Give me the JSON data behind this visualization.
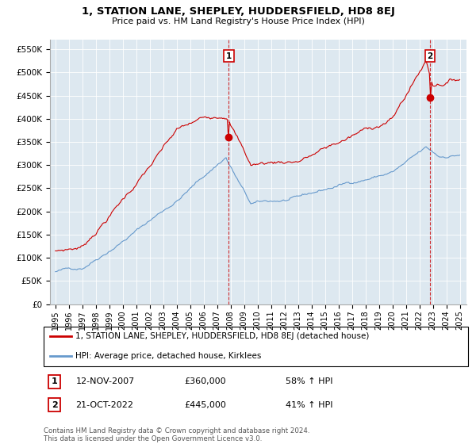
{
  "title": "1, STATION LANE, SHEPLEY, HUDDERSFIELD, HD8 8EJ",
  "subtitle": "Price paid vs. HM Land Registry's House Price Index (HPI)",
  "legend_line1": "1, STATION LANE, SHEPLEY, HUDDERSFIELD, HD8 8EJ (detached house)",
  "legend_line2": "HPI: Average price, detached house, Kirklees",
  "annotation1_date": "12-NOV-2007",
  "annotation1_price": "£360,000",
  "annotation1_hpi": "58% ↑ HPI",
  "annotation2_date": "21-OCT-2022",
  "annotation2_price": "£445,000",
  "annotation2_hpi": "41% ↑ HPI",
  "footer": "Contains HM Land Registry data © Crown copyright and database right 2024.\nThis data is licensed under the Open Government Licence v3.0.",
  "house_color": "#cc0000",
  "hpi_color": "#6699cc",
  "sale1_x": 2007.87,
  "sale1_y": 360000,
  "sale2_x": 2022.8,
  "sale2_y": 445000,
  "ylim": [
    0,
    570000
  ],
  "xlim_start": 1994.6,
  "xlim_end": 2025.5,
  "plot_bg_color": "#dde8f0",
  "background_color": "#ffffff",
  "grid_color": "#ffffff"
}
